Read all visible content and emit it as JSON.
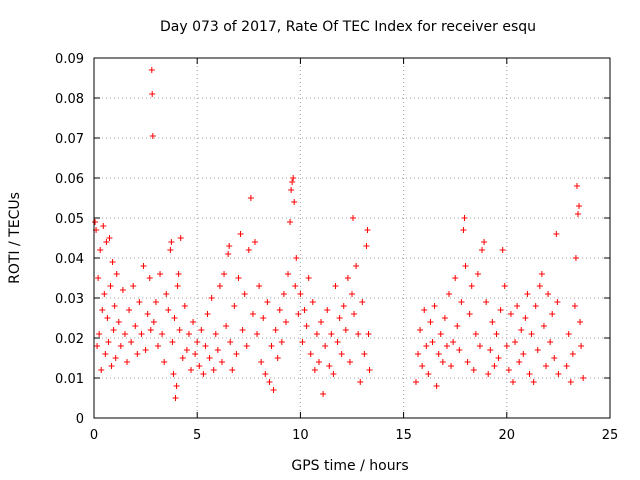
{
  "chart_data": {
    "type": "scatter",
    "title": "Day 073 of 2017, Rate Of TEC Index for receiver esqu",
    "xlabel": "GPS time / hours",
    "ylabel": "ROTI / TECUs",
    "xlim": [
      0,
      25
    ],
    "ylim": [
      0,
      0.09
    ],
    "xticks": [
      0,
      5,
      10,
      15,
      20,
      25
    ],
    "xtick_labels": [
      "0",
      "5",
      "10",
      "15",
      "20",
      "25"
    ],
    "yticks": [
      0,
      0.01,
      0.02,
      0.03,
      0.04,
      0.05,
      0.06,
      0.07,
      0.08,
      0.09
    ],
    "ytick_labels": [
      "0",
      "0.01",
      "0.02",
      "0.03",
      "0.04",
      "0.05",
      "0.06",
      "0.07",
      "0.08",
      "0.09"
    ],
    "grid": true,
    "marker": "+",
    "color": "#ff0000",
    "series": [
      {
        "points": [
          [
            0.05,
            0.049
          ],
          [
            0.1,
            0.047
          ],
          [
            0.15,
            0.018
          ],
          [
            0.2,
            0.035
          ],
          [
            0.25,
            0.021
          ],
          [
            0.3,
            0.042
          ],
          [
            0.35,
            0.012
          ],
          [
            0.4,
            0.027
          ],
          [
            0.45,
            0.048
          ],
          [
            0.5,
            0.031
          ],
          [
            0.55,
            0.016
          ],
          [
            0.6,
            0.044
          ],
          [
            0.65,
            0.025
          ],
          [
            0.7,
            0.019
          ],
          [
            0.75,
            0.045
          ],
          [
            0.8,
            0.033
          ],
          [
            0.85,
            0.013
          ],
          [
            0.9,
            0.039
          ],
          [
            0.95,
            0.022
          ],
          [
            1.0,
            0.028
          ],
          [
            1.05,
            0.015
          ],
          [
            1.1,
            0.036
          ],
          [
            1.2,
            0.024
          ],
          [
            1.3,
            0.018
          ],
          [
            1.4,
            0.032
          ],
          [
            1.5,
            0.021
          ],
          [
            1.6,
            0.014
          ],
          [
            1.7,
            0.027
          ],
          [
            1.8,
            0.019
          ],
          [
            1.9,
            0.033
          ],
          [
            2.0,
            0.023
          ],
          [
            2.1,
            0.016
          ],
          [
            2.2,
            0.029
          ],
          [
            2.3,
            0.021
          ],
          [
            2.4,
            0.038
          ],
          [
            2.5,
            0.017
          ],
          [
            2.6,
            0.026
          ],
          [
            2.7,
            0.035
          ],
          [
            2.75,
            0.022
          ],
          [
            2.8,
            0.087
          ],
          [
            2.82,
            0.081
          ],
          [
            2.85,
            0.0705
          ],
          [
            2.9,
            0.024
          ],
          [
            3.0,
            0.029
          ],
          [
            3.1,
            0.018
          ],
          [
            3.2,
            0.036
          ],
          [
            3.3,
            0.021
          ],
          [
            3.4,
            0.014
          ],
          [
            3.5,
            0.031
          ],
          [
            3.6,
            0.027
          ],
          [
            3.7,
            0.042
          ],
          [
            3.75,
            0.044
          ],
          [
            3.8,
            0.019
          ],
          [
            3.85,
            0.011
          ],
          [
            3.9,
            0.025
          ],
          [
            3.95,
            0.005
          ],
          [
            4.0,
            0.008
          ],
          [
            4.05,
            0.033
          ],
          [
            4.1,
            0.036
          ],
          [
            4.15,
            0.022
          ],
          [
            4.2,
            0.045
          ],
          [
            4.3,
            0.015
          ],
          [
            4.4,
            0.028
          ],
          [
            4.5,
            0.017
          ],
          [
            4.6,
            0.021
          ],
          [
            4.7,
            0.012
          ],
          [
            4.8,
            0.024
          ],
          [
            4.9,
            0.016
          ],
          [
            5.0,
            0.019
          ],
          [
            5.1,
            0.013
          ],
          [
            5.2,
            0.022
          ],
          [
            5.3,
            0.011
          ],
          [
            5.4,
            0.018
          ],
          [
            5.5,
            0.026
          ],
          [
            5.6,
            0.015
          ],
          [
            5.7,
            0.03
          ],
          [
            5.8,
            0.012
          ],
          [
            5.9,
            0.021
          ],
          [
            6.0,
            0.017
          ],
          [
            6.1,
            0.033
          ],
          [
            6.2,
            0.014
          ],
          [
            6.3,
            0.036
          ],
          [
            6.4,
            0.023
          ],
          [
            6.5,
            0.041
          ],
          [
            6.55,
            0.043
          ],
          [
            6.6,
            0.019
          ],
          [
            6.7,
            0.012
          ],
          [
            6.8,
            0.028
          ],
          [
            6.9,
            0.016
          ],
          [
            7.0,
            0.035
          ],
          [
            7.1,
            0.046
          ],
          [
            7.2,
            0.022
          ],
          [
            7.3,
            0.031
          ],
          [
            7.4,
            0.018
          ],
          [
            7.5,
            0.042
          ],
          [
            7.6,
            0.055
          ],
          [
            7.7,
            0.026
          ],
          [
            7.8,
            0.044
          ],
          [
            7.9,
            0.021
          ],
          [
            8.0,
            0.033
          ],
          [
            8.1,
            0.014
          ],
          [
            8.2,
            0.025
          ],
          [
            8.3,
            0.011
          ],
          [
            8.4,
            0.029
          ],
          [
            8.5,
            0.009
          ],
          [
            8.6,
            0.018
          ],
          [
            8.7,
            0.007
          ],
          [
            8.8,
            0.022
          ],
          [
            8.9,
            0.015
          ],
          [
            9.0,
            0.027
          ],
          [
            9.1,
            0.019
          ],
          [
            9.2,
            0.031
          ],
          [
            9.3,
            0.024
          ],
          [
            9.4,
            0.036
          ],
          [
            9.5,
            0.049
          ],
          [
            9.55,
            0.057
          ],
          [
            9.6,
            0.059
          ],
          [
            9.65,
            0.06
          ],
          [
            9.7,
            0.054
          ],
          [
            9.75,
            0.033
          ],
          [
            9.8,
            0.04
          ],
          [
            9.9,
            0.026
          ],
          [
            10.0,
            0.031
          ],
          [
            10.1,
            0.019
          ],
          [
            10.2,
            0.027
          ],
          [
            10.3,
            0.023
          ],
          [
            10.4,
            0.035
          ],
          [
            10.5,
            0.016
          ],
          [
            10.6,
            0.029
          ],
          [
            10.7,
            0.012
          ],
          [
            10.8,
            0.021
          ],
          [
            10.9,
            0.014
          ],
          [
            11.0,
            0.024
          ],
          [
            11.1,
            0.006
          ],
          [
            11.2,
            0.018
          ],
          [
            11.3,
            0.027
          ],
          [
            11.4,
            0.013
          ],
          [
            11.5,
            0.021
          ],
          [
            11.6,
            0.011
          ],
          [
            11.7,
            0.033
          ],
          [
            11.8,
            0.019
          ],
          [
            11.9,
            0.025
          ],
          [
            12.0,
            0.016
          ],
          [
            12.1,
            0.028
          ],
          [
            12.2,
            0.022
          ],
          [
            12.3,
            0.035
          ],
          [
            12.4,
            0.014
          ],
          [
            12.5,
            0.031
          ],
          [
            12.55,
            0.05
          ],
          [
            12.6,
            0.026
          ],
          [
            12.7,
            0.038
          ],
          [
            12.8,
            0.021
          ],
          [
            12.9,
            0.009
          ],
          [
            13.0,
            0.029
          ],
          [
            13.1,
            0.016
          ],
          [
            13.2,
            0.043
          ],
          [
            13.25,
            0.047
          ],
          [
            13.3,
            0.021
          ],
          [
            13.35,
            0.012
          ],
          [
            15.6,
            0.009
          ],
          [
            15.7,
            0.016
          ],
          [
            15.8,
            0.022
          ],
          [
            15.9,
            0.013
          ],
          [
            16.0,
            0.027
          ],
          [
            16.1,
            0.018
          ],
          [
            16.2,
            0.011
          ],
          [
            16.3,
            0.024
          ],
          [
            16.4,
            0.019
          ],
          [
            16.5,
            0.028
          ],
          [
            16.6,
            0.008
          ],
          [
            16.7,
            0.016
          ],
          [
            16.8,
            0.021
          ],
          [
            16.9,
            0.014
          ],
          [
            17.0,
            0.025
          ],
          [
            17.1,
            0.018
          ],
          [
            17.2,
            0.031
          ],
          [
            17.3,
            0.013
          ],
          [
            17.4,
            0.019
          ],
          [
            17.5,
            0.035
          ],
          [
            17.6,
            0.023
          ],
          [
            17.7,
            0.017
          ],
          [
            17.8,
            0.029
          ],
          [
            17.9,
            0.047
          ],
          [
            17.95,
            0.05
          ],
          [
            18.0,
            0.038
          ],
          [
            18.1,
            0.014
          ],
          [
            18.2,
            0.026
          ],
          [
            18.3,
            0.033
          ],
          [
            18.4,
            0.012
          ],
          [
            18.5,
            0.021
          ],
          [
            18.6,
            0.036
          ],
          [
            18.7,
            0.018
          ],
          [
            18.8,
            0.042
          ],
          [
            18.9,
            0.044
          ],
          [
            19.0,
            0.029
          ],
          [
            19.1,
            0.011
          ],
          [
            19.2,
            0.017
          ],
          [
            19.3,
            0.024
          ],
          [
            19.4,
            0.013
          ],
          [
            19.5,
            0.021
          ],
          [
            19.6,
            0.015
          ],
          [
            19.7,
            0.027
          ],
          [
            19.8,
            0.042
          ],
          [
            19.9,
            0.033
          ],
          [
            20.0,
            0.018
          ],
          [
            20.1,
            0.012
          ],
          [
            20.2,
            0.026
          ],
          [
            20.3,
            0.009
          ],
          [
            20.4,
            0.019
          ],
          [
            20.5,
            0.028
          ],
          [
            20.6,
            0.014
          ],
          [
            20.7,
            0.022
          ],
          [
            20.8,
            0.016
          ],
          [
            20.9,
            0.025
          ],
          [
            21.0,
            0.031
          ],
          [
            21.1,
            0.011
          ],
          [
            21.2,
            0.021
          ],
          [
            21.3,
            0.009
          ],
          [
            21.4,
            0.028
          ],
          [
            21.5,
            0.017
          ],
          [
            21.6,
            0.033
          ],
          [
            21.7,
            0.036
          ],
          [
            21.8,
            0.023
          ],
          [
            21.9,
            0.013
          ],
          [
            22.0,
            0.031
          ],
          [
            22.1,
            0.019
          ],
          [
            22.2,
            0.026
          ],
          [
            22.3,
            0.015
          ],
          [
            22.4,
            0.046
          ],
          [
            22.45,
            0.029
          ],
          [
            22.5,
            0.011
          ],
          [
            22.9,
            0.013
          ],
          [
            23.0,
            0.021
          ],
          [
            23.1,
            0.009
          ],
          [
            23.2,
            0.016
          ],
          [
            23.3,
            0.028
          ],
          [
            23.35,
            0.04
          ],
          [
            23.4,
            0.058
          ],
          [
            23.45,
            0.051
          ],
          [
            23.5,
            0.053
          ],
          [
            23.55,
            0.024
          ],
          [
            23.6,
            0.018
          ],
          [
            23.7,
            0.01
          ]
        ]
      }
    ]
  }
}
